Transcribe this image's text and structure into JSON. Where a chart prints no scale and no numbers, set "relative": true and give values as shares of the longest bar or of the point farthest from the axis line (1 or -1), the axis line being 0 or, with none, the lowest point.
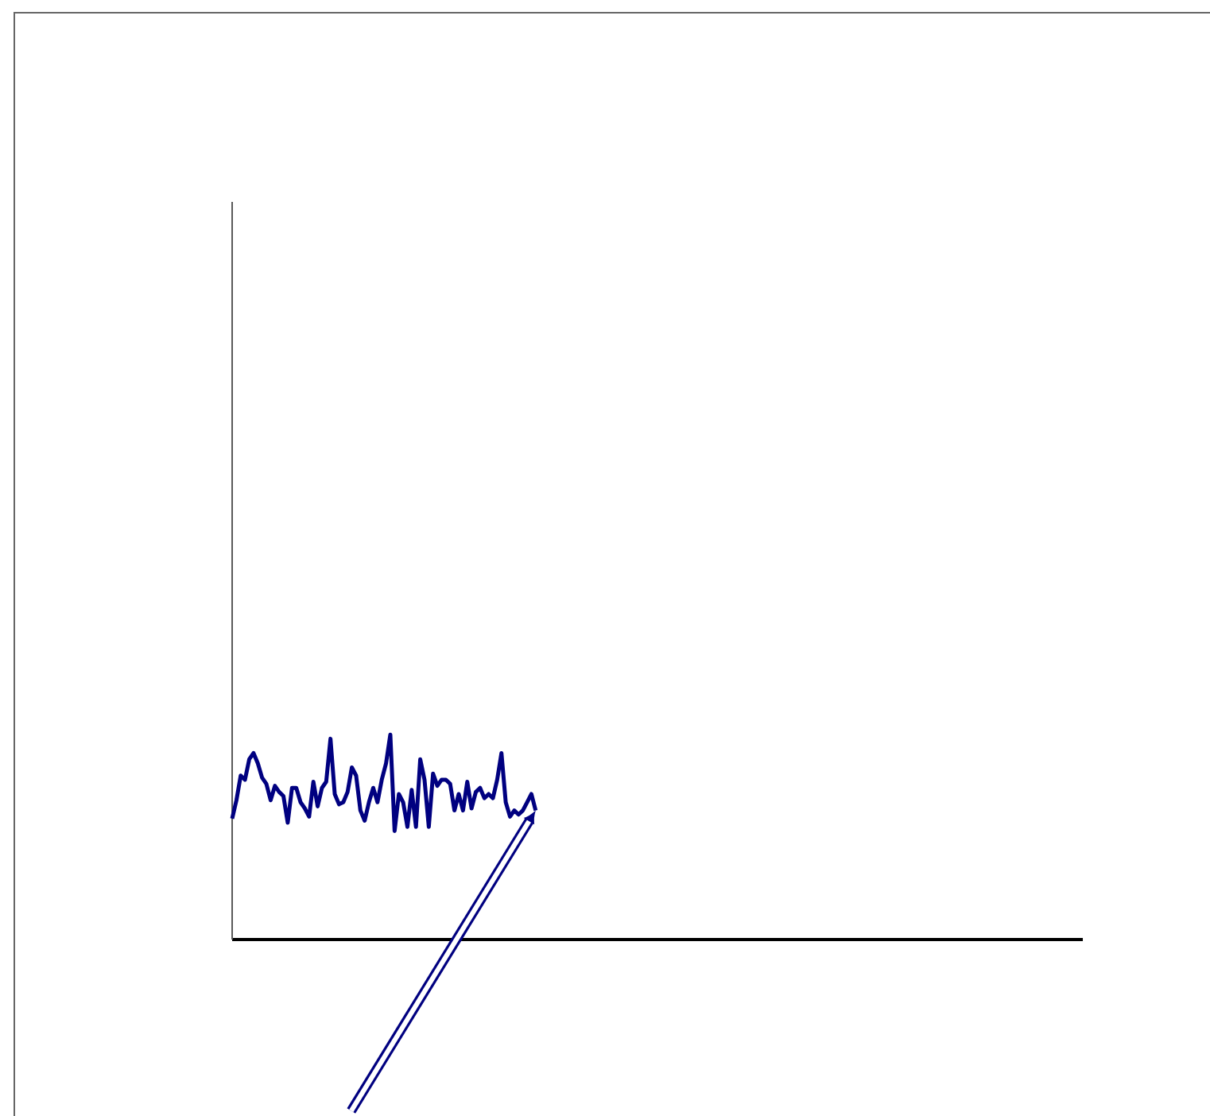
{
  "chart_data": {
    "type": "line",
    "relative": true,
    "categories": [
      null,
      null,
      null,
      null,
      null,
      null,
      null,
      null,
      null,
      null,
      null,
      null,
      null,
      null,
      null,
      null,
      null,
      null,
      null,
      null,
      null,
      null,
      null,
      null,
      null,
      null,
      null,
      null,
      null,
      null,
      null,
      null,
      null,
      null,
      null,
      null,
      null,
      null,
      null,
      null,
      null,
      null,
      null,
      null,
      null,
      null,
      null,
      null,
      null,
      null,
      null,
      null,
      null,
      null,
      null,
      null,
      null,
      null,
      null,
      null,
      null,
      null,
      null,
      null,
      null,
      null,
      null,
      null,
      null,
      null,
      null,
      null,
      null,
      null,
      null,
      null,
      null,
      null,
      null,
      null,
      null,
      null,
      null,
      null,
      null,
      null,
      null,
      null,
      null,
      null,
      null,
      null,
      null,
      null,
      null,
      null,
      null,
      null,
      null,
      null,
      null,
      null,
      null,
      null,
      null,
      null,
      null,
      null,
      null,
      null,
      null,
      null,
      null,
      null,
      null,
      null,
      null,
      null,
      null,
      null,
      null,
      null,
      null,
      null,
      null,
      null,
      null,
      null,
      null,
      null,
      null,
      null,
      null,
      null,
      null,
      null,
      null,
      null,
      null,
      null,
      null,
      null,
      null,
      null,
      null,
      null,
      null,
      null,
      null,
      null,
      null,
      null,
      null,
      null,
      null,
      null,
      null,
      null,
      null,
      null,
      null,
      null,
      null,
      null,
      null,
      null,
      null,
      null,
      null,
      null,
      null,
      null,
      null,
      null,
      null,
      null,
      null,
      null,
      null,
      null,
      null,
      null,
      null,
      null,
      null,
      null,
      null,
      null,
      null,
      null,
      null,
      null,
      null,
      null,
      null,
      null,
      null,
      null,
      null,
      null
    ],
    "series": [
      {
        "color": "#000080",
        "values": [
          0.59,
          0.68,
          0.8,
          0.78,
          0.88,
          0.91,
          0.86,
          0.79,
          0.76,
          0.68,
          0.75,
          0.72,
          0.7,
          0.57,
          0.74,
          0.74,
          0.67,
          0.64,
          0.6,
          0.77,
          0.65,
          0.74,
          0.77,
          0.98,
          0.71,
          0.66,
          0.67,
          0.72,
          0.84,
          0.8,
          0.63,
          0.58,
          0.67,
          0.74,
          0.67,
          0.78,
          0.86,
          1,
          0.53,
          0.71,
          0.67,
          0.55,
          0.73,
          0.55,
          0.88,
          0.78,
          0.55,
          0.81,
          0.75,
          0.78,
          0.78,
          0.76,
          0.63,
          0.71,
          0.63,
          0.77,
          0.64,
          0.72,
          0.74,
          0.69,
          0.71,
          0.69,
          0.78,
          0.91,
          0.67,
          0.6,
          0.63,
          0.61,
          0.63,
          0.67,
          0.71,
          0.63,
          null,
          null,
          null,
          null,
          null,
          null,
          null,
          null,
          null,
          null,
          null,
          null,
          null,
          null,
          null,
          null,
          null,
          null,
          null,
          null,
          null,
          null,
          null,
          null,
          null,
          null,
          null,
          null,
          null,
          null,
          null,
          null,
          null,
          null,
          null,
          null,
          null,
          null,
          null,
          null,
          null,
          null,
          null,
          null,
          null,
          null,
          null,
          null,
          null,
          null,
          null,
          null,
          null,
          null,
          null,
          null,
          null,
          null,
          null,
          null,
          null,
          null,
          null,
          null,
          null,
          null,
          null,
          null,
          null,
          null,
          null,
          null,
          null,
          null,
          null,
          null,
          null,
          null,
          null,
          null,
          null,
          null,
          null,
          null,
          null,
          null,
          null,
          null,
          null,
          null,
          null,
          null,
          null,
          null,
          null,
          null,
          null,
          null,
          null,
          null,
          null,
          null,
          null,
          null,
          null,
          null,
          null,
          null,
          null,
          null,
          null,
          null,
          null,
          null,
          null,
          null,
          null,
          null,
          null,
          null,
          null,
          null,
          null,
          null,
          null,
          null,
          null,
          null
        ]
      }
    ]
  }
}
